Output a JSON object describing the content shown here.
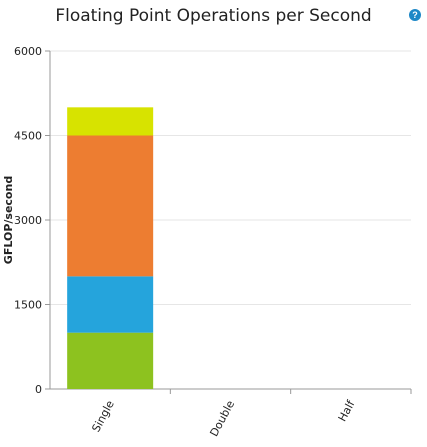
{
  "chart_data": {
    "type": "bar",
    "stacked": true,
    "title": "Floating Point Operations per Second",
    "ylabel": "GFLOP/second",
    "categories": [
      "Single",
      "Double",
      "Half"
    ],
    "y_ticks": [
      "0",
      "1500",
      "3000",
      "4500",
      "6000"
    ],
    "ylim": [
      0,
      6000
    ],
    "grid": true,
    "series": [
      {
        "values": [
          1000,
          0,
          0
        ],
        "color": "#8dc21f"
      },
      {
        "values": [
          1000,
          0,
          0
        ],
        "color": "#25a4dc"
      },
      {
        "values": [
          2500,
          0,
          0
        ],
        "color": "#ed7d31"
      },
      {
        "values": [
          500,
          0,
          0
        ],
        "color": "#d7e300"
      }
    ]
  },
  "help_icon": "question-mark-icon",
  "help_glyph": "?"
}
